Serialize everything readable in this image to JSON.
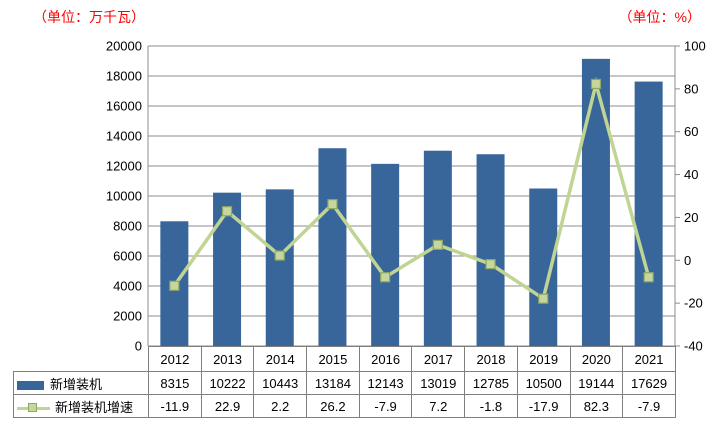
{
  "units": {
    "left_label": "（单位：万千瓦）",
    "right_label": "（单位：%）",
    "label_color": "#ff0000"
  },
  "chart_data": {
    "type": "bar",
    "subtype": "bar+line combo with data table",
    "categories": [
      "2012",
      "2013",
      "2014",
      "2015",
      "2016",
      "2017",
      "2018",
      "2019",
      "2020",
      "2021"
    ],
    "series": [
      {
        "name": "新增装机",
        "type": "bar",
        "axis": "left",
        "values": [
          8315,
          10222,
          10443,
          13184,
          12143,
          13019,
          12785,
          10500,
          19144,
          17629
        ],
        "color": "#38669a"
      },
      {
        "name": "新增装机增速",
        "type": "line",
        "axis": "right",
        "values": [
          -11.9,
          22.9,
          2.2,
          26.2,
          -7.9,
          7.2,
          -1.8,
          -17.9,
          82.3,
          -7.9
        ],
        "color": "#c0d494",
        "marker": "square",
        "marker_fill": "#c6d69e",
        "marker_border": "#8fa961"
      }
    ],
    "left_axis": {
      "min": 0,
      "max": 20000,
      "step": 2000,
      "unit": "万千瓦"
    },
    "right_axis": {
      "min": -40,
      "max": 100,
      "step": 20,
      "unit": "%"
    },
    "grid": true,
    "legend_position": "table-left",
    "colors": {
      "grid": "#8e8e8e",
      "axis": "#8e8e8e",
      "table_border": "#7f7f7f",
      "text": "#000000",
      "background": "#ffffff"
    }
  }
}
